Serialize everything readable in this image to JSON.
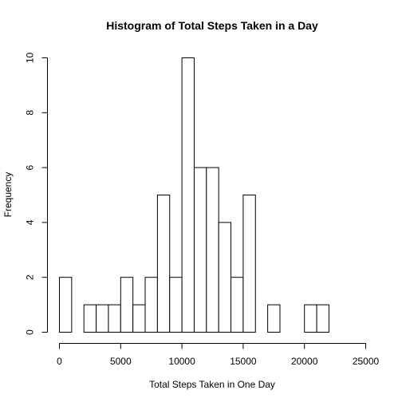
{
  "chart_data": {
    "type": "bar",
    "title": "Histogram of Total Steps Taken in a Day",
    "xlabel": "Total Steps Taken in One Day",
    "ylabel": "Frequency",
    "bin_width": 1000,
    "bin_starts": [
      0,
      1000,
      2000,
      3000,
      4000,
      5000,
      6000,
      7000,
      8000,
      9000,
      10000,
      11000,
      12000,
      13000,
      14000,
      15000,
      16000,
      17000,
      18000,
      19000,
      20000,
      21000
    ],
    "values": [
      2,
      0,
      1,
      1,
      1,
      2,
      1,
      2,
      5,
      2,
      10,
      6,
      6,
      4,
      2,
      5,
      0,
      1,
      0,
      0,
      1,
      1
    ],
    "xlim": [
      0,
      25000
    ],
    "ylim": [
      0,
      10
    ],
    "x_ticks": [
      0,
      5000,
      10000,
      15000,
      20000,
      25000
    ],
    "y_ticks": [
      0,
      2,
      4,
      6,
      8,
      10
    ],
    "grid": false,
    "bar_fill": "#ffffff",
    "bar_stroke": "#000000"
  }
}
